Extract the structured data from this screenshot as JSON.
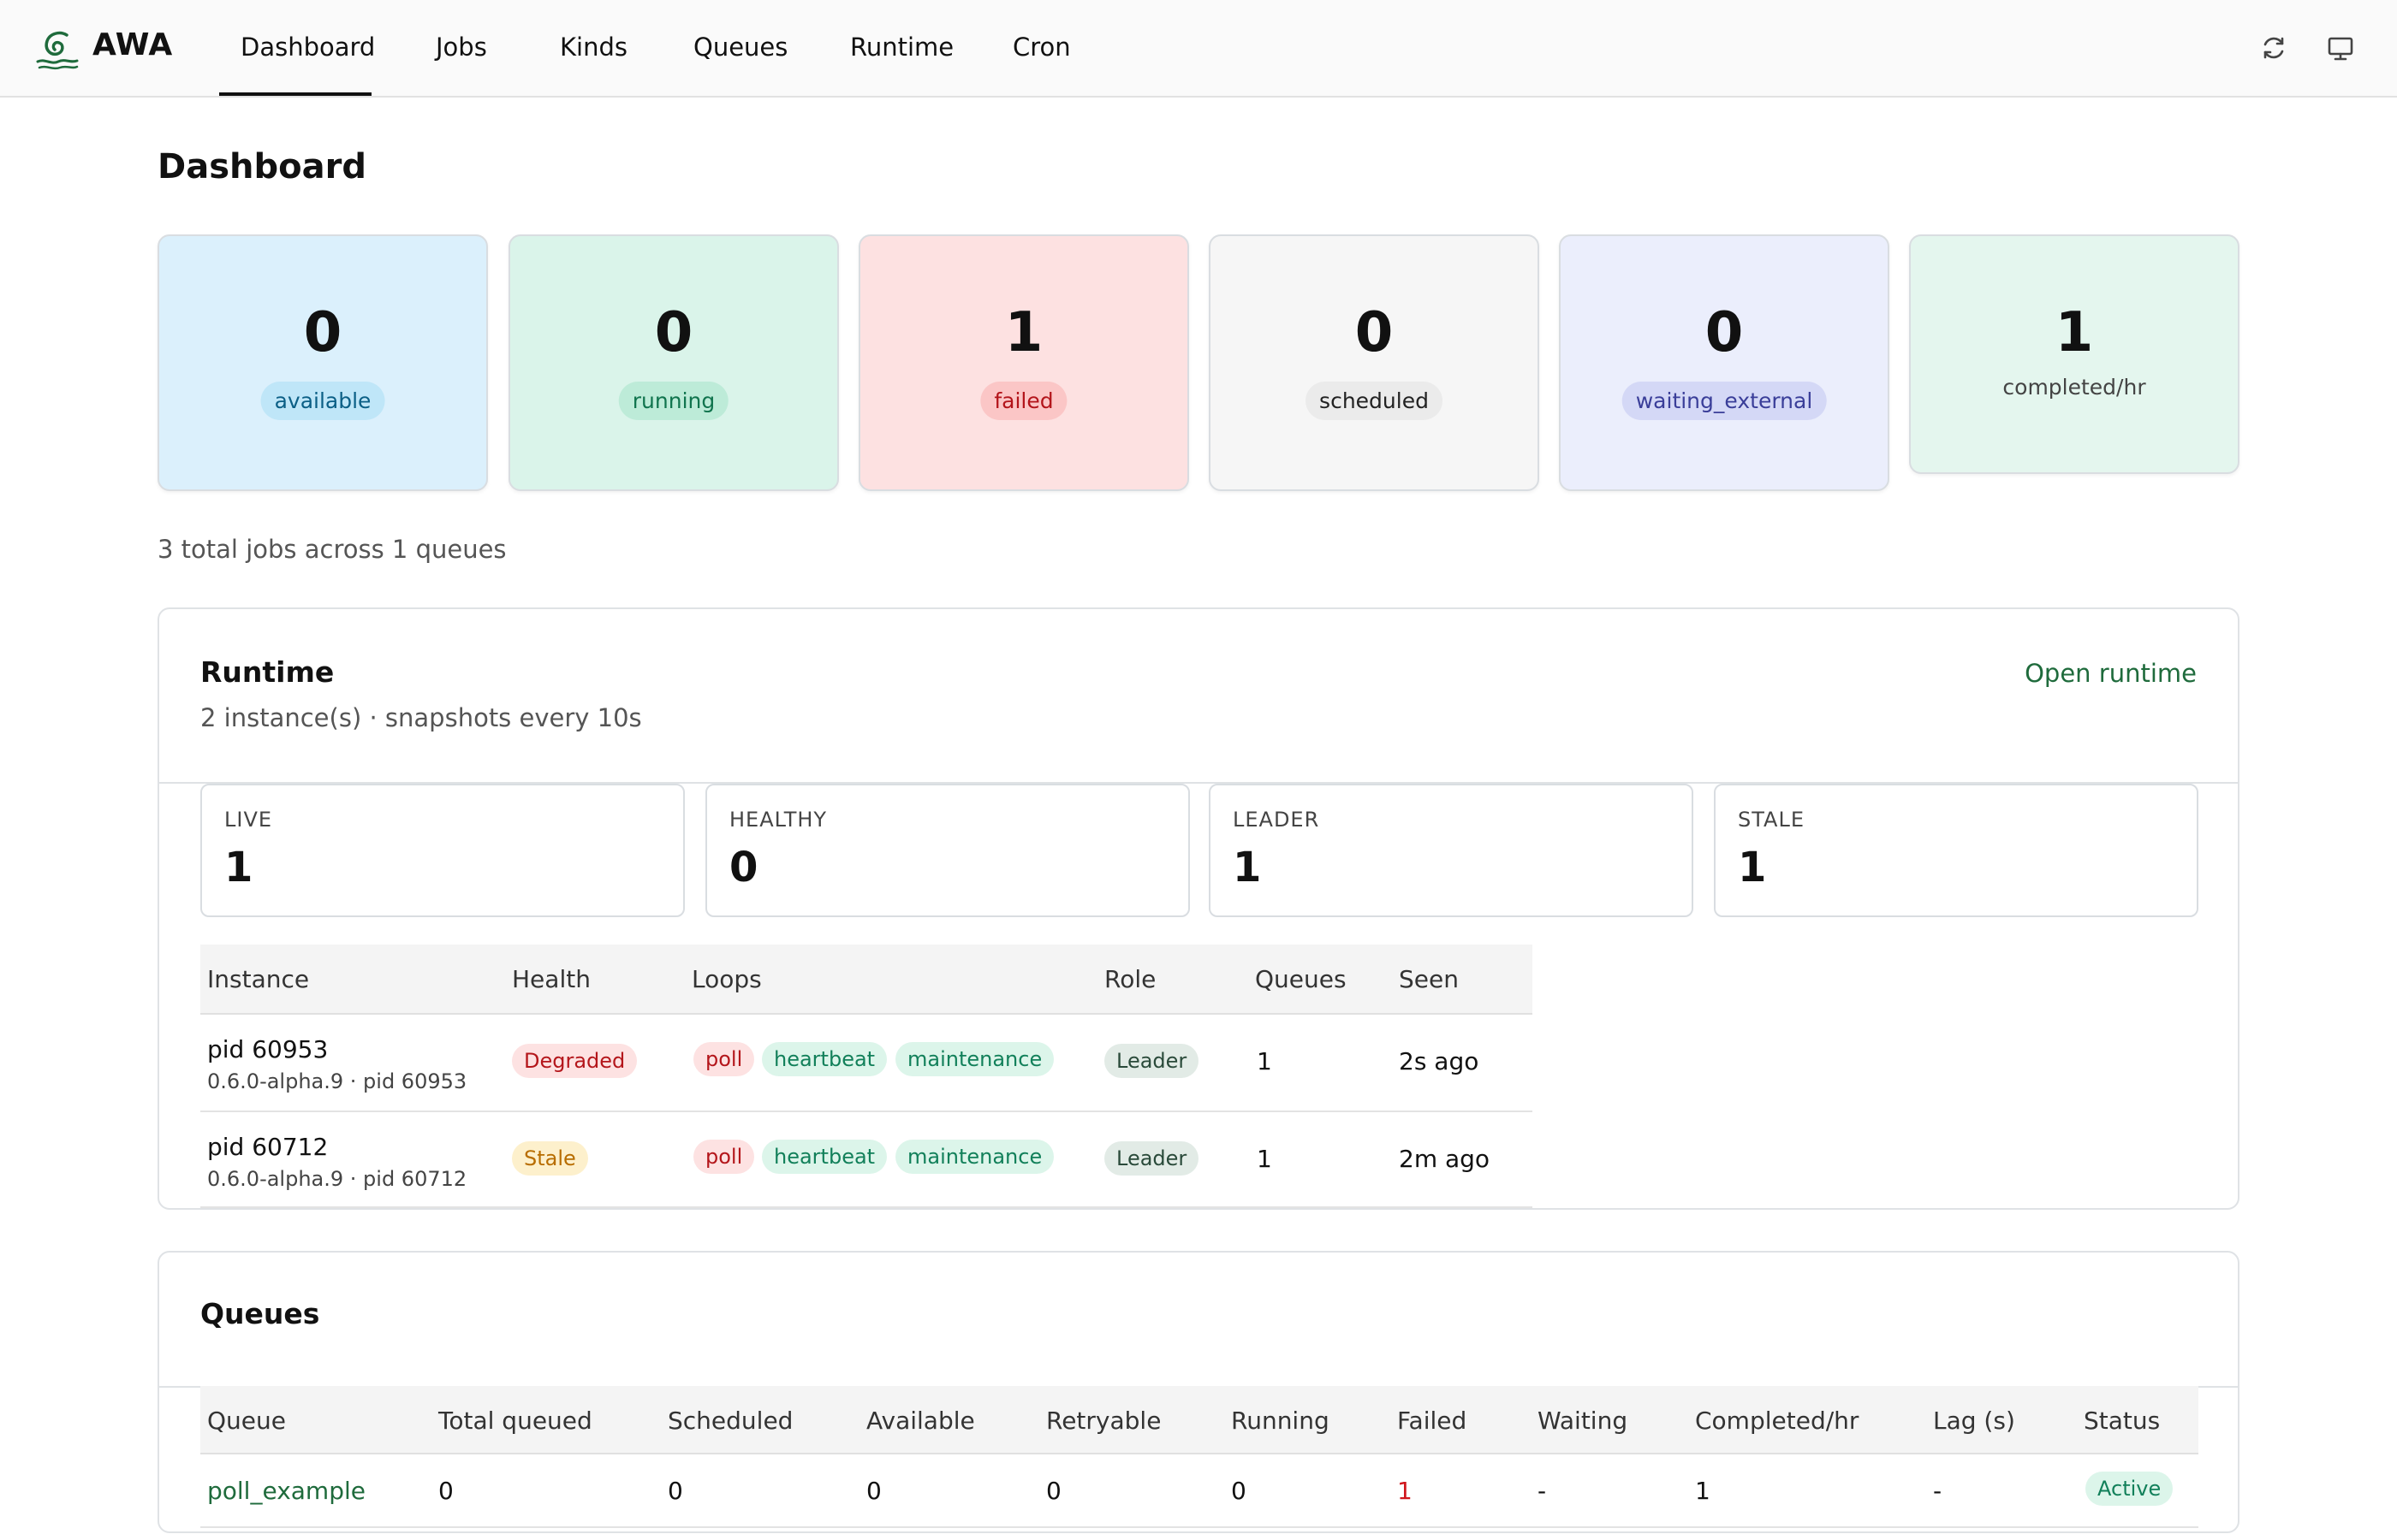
{
  "app": {
    "brand": "AWA"
  },
  "nav": [
    {
      "label": "Dashboard",
      "active": true
    },
    {
      "label": "Jobs"
    },
    {
      "label": "Kinds"
    },
    {
      "label": "Queues"
    },
    {
      "label": "Runtime"
    },
    {
      "label": "Cron"
    }
  ],
  "toolbar_icons": [
    "refresh-icon",
    "monitor-icon"
  ],
  "page": {
    "title": "Dashboard"
  },
  "stats": [
    {
      "value": "0",
      "label": "available",
      "bg": "#dbf0fc",
      "pill_bg": "#bfe6f8",
      "pill_fg": "#0b5f86"
    },
    {
      "value": "0",
      "label": "running",
      "bg": "#daf4ea",
      "pill_bg": "#bdebd8",
      "pill_fg": "#11744e"
    },
    {
      "value": "1",
      "label": "failed",
      "bg": "#fde1e1",
      "pill_bg": "#fbc6c6",
      "pill_fg": "#b3141a"
    },
    {
      "value": "0",
      "label": "scheduled",
      "bg": "#f6f6f6",
      "pill_bg": "#ebebeb",
      "pill_fg": "#222222"
    },
    {
      "value": "0",
      "label": "waiting_external",
      "bg": "#ebeefc",
      "pill_bg": "#d4d8f6",
      "pill_fg": "#3a3e99"
    },
    {
      "value": "1",
      "label": "completed/hr",
      "bg": "#e4f6ee"
    }
  ],
  "summary": "3 total jobs across 1 queues",
  "runtime": {
    "title": "Runtime",
    "subtitle": "2 instance(s) · snapshots every 10s",
    "link": "Open runtime",
    "metrics": [
      {
        "label": "LIVE",
        "value": "1"
      },
      {
        "label": "HEALTHY",
        "value": "0"
      },
      {
        "label": "LEADER",
        "value": "1"
      },
      {
        "label": "STALE",
        "value": "1"
      }
    ],
    "columns": [
      "Instance",
      "Health",
      "Loops",
      "Role",
      "Queues",
      "Seen"
    ],
    "rows": [
      {
        "instance": "pid 60953",
        "detail": "0.6.0-alpha.9 · pid 60953",
        "health": "Degraded",
        "loops": [
          "poll",
          "heartbeat",
          "maintenance"
        ],
        "role": "Leader",
        "queues": "1",
        "seen": "2s ago"
      },
      {
        "instance": "pid 60712",
        "detail": "0.6.0-alpha.9 · pid 60712",
        "health": "Stale",
        "loops": [
          "poll",
          "heartbeat",
          "maintenance"
        ],
        "role": "Leader",
        "queues": "1",
        "seen": "2m ago"
      }
    ]
  },
  "queues": {
    "title": "Queues",
    "columns": [
      "Queue",
      "Total queued",
      "Scheduled",
      "Available",
      "Retryable",
      "Running",
      "Failed",
      "Waiting",
      "Completed/hr",
      "Lag (s)",
      "Status"
    ],
    "rows": [
      {
        "queue": "poll_example",
        "total": "0",
        "scheduled": "0",
        "available": "0",
        "retryable": "0",
        "running": "0",
        "failed": "1",
        "waiting": "-",
        "completed": "1",
        "lag": "-",
        "status": "Active"
      }
    ]
  }
}
